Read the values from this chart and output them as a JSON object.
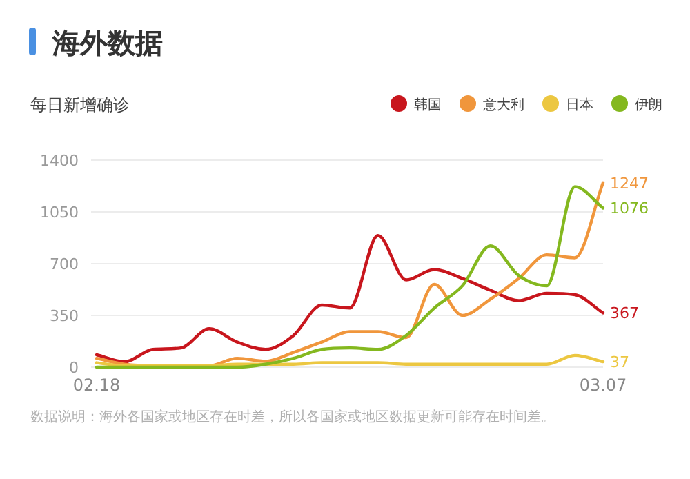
{
  "chart_data": {
    "type": "line",
    "title": "海外数据",
    "subtitle": "每日新增确诊",
    "categories": [
      "02.18",
      null,
      null,
      null,
      null,
      null,
      null,
      null,
      null,
      null,
      null,
      null,
      null,
      null,
      null,
      null,
      null,
      null,
      "03.07"
    ],
    "series": [
      {
        "name": "韩国",
        "color": "#c8161d",
        "values": [
          84,
          37,
          120,
          130,
          260,
          170,
          120,
          215,
          420,
          400,
          890,
          590,
          660,
          600,
          520,
          450,
          500,
          490,
          367
        ],
        "value_labels": [
          null,
          null,
          null,
          null,
          null,
          null,
          null,
          null,
          null,
          null,
          null,
          null,
          null,
          null,
          null,
          null,
          null,
          null,
          "367"
        ]
      },
      {
        "name": "意大利",
        "color": "#f0963c",
        "values": [
          60,
          20,
          10,
          10,
          10,
          60,
          40,
          100,
          170,
          240,
          240,
          200,
          560,
          350,
          460,
          600,
          760,
          740,
          1247
        ],
        "value_labels": [
          null,
          null,
          null,
          null,
          null,
          null,
          null,
          null,
          null,
          null,
          null,
          null,
          null,
          null,
          null,
          null,
          null,
          null,
          "1247"
        ]
      },
      {
        "name": "日本",
        "color": "#ecc741",
        "values": [
          30,
          10,
          10,
          10,
          10,
          20,
          20,
          20,
          30,
          30,
          30,
          20,
          20,
          20,
          20,
          20,
          20,
          80,
          37
        ],
        "value_labels": [
          null,
          null,
          null,
          null,
          null,
          null,
          null,
          null,
          null,
          null,
          null,
          null,
          null,
          null,
          null,
          null,
          null,
          null,
          "37"
        ]
      },
      {
        "name": "伊朗",
        "color": "#84b81f",
        "values": [
          0,
          0,
          0,
          0,
          0,
          0,
          20,
          60,
          120,
          130,
          120,
          215,
          400,
          550,
          820,
          620,
          550,
          1220,
          1076
        ],
        "value_labels": [
          null,
          null,
          null,
          null,
          null,
          null,
          null,
          null,
          null,
          null,
          null,
          null,
          null,
          null,
          null,
          null,
          null,
          null,
          "1076"
        ]
      }
    ],
    "ylim": [
      0,
      1400
    ],
    "yticks": [
      0,
      350,
      700,
      1050,
      1400
    ],
    "grid": "y",
    "legend": "top right",
    "annotations": [
      "数据说明：海外各国家或地区存在时差，所以各国家或地区数据更新可能存在时间差。"
    ]
  }
}
